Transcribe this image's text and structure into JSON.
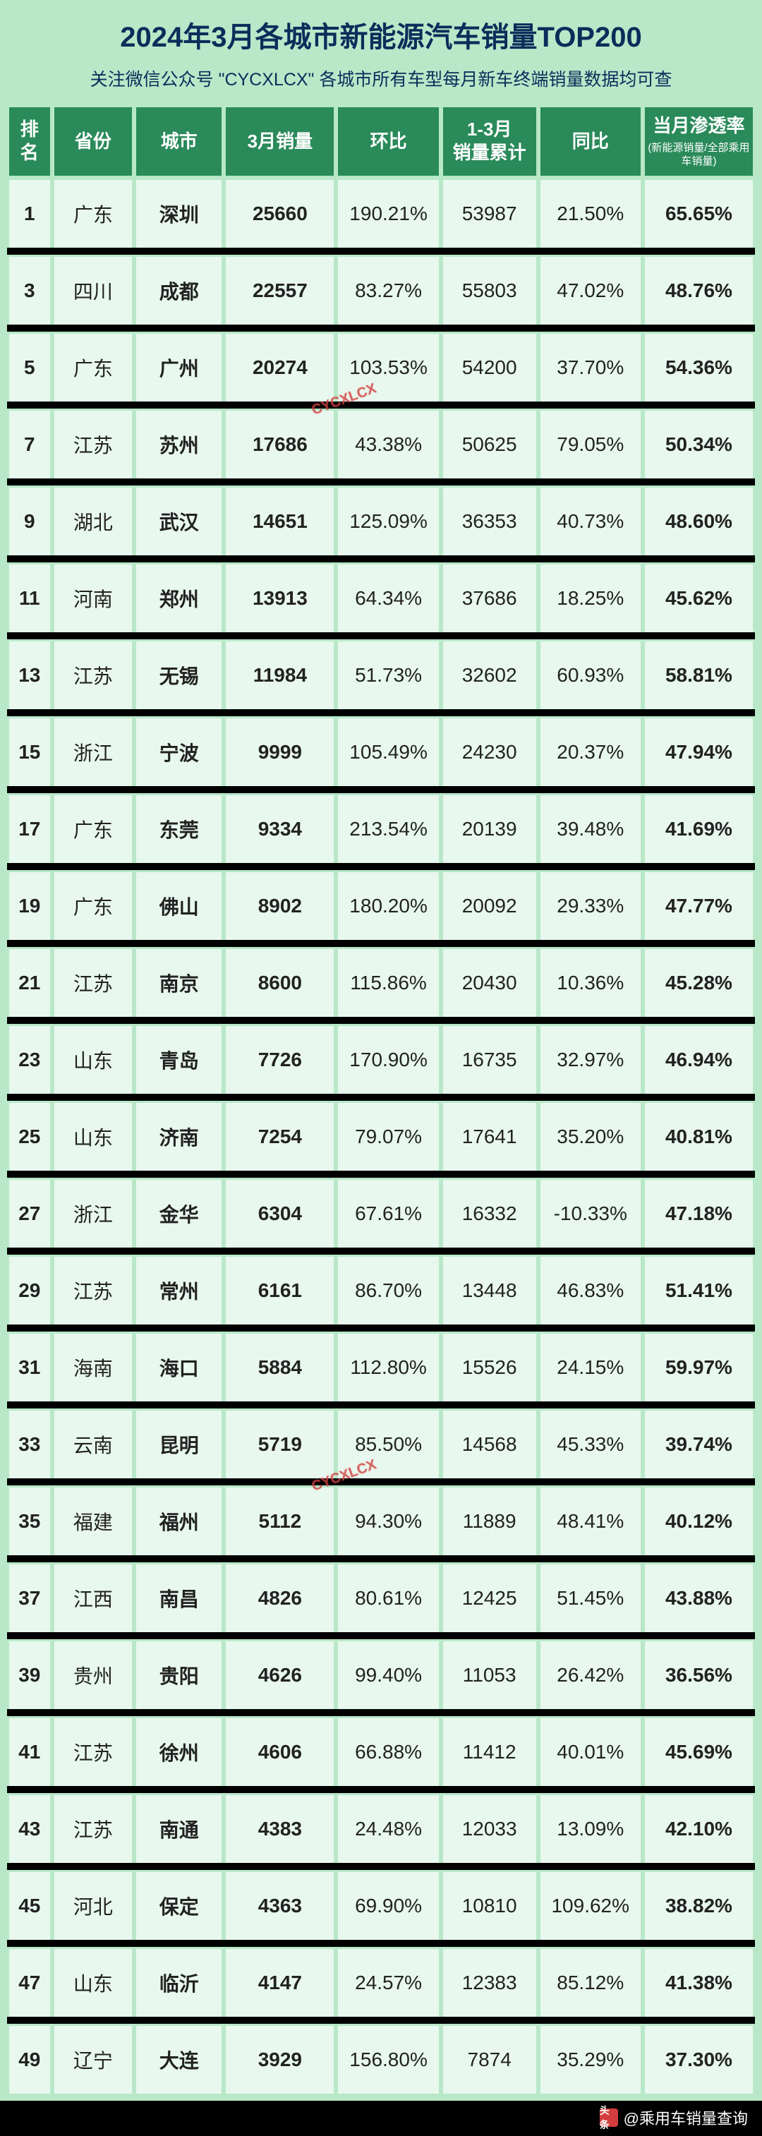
{
  "title": "2024年3月各城市新能源汽车销量TOP200",
  "subtitle_prefix": "关注微信公众号",
  "subtitle_account": "\"CYCXLCX\"",
  "subtitle_suffix": "各城市所有车型每月新车终端销量数据均可查",
  "watermark1": "CYCXLCX",
  "watermark2": "CYCXLCX",
  "footer_logo": "头条",
  "footer_text": "@乘用车销量查询",
  "colors": {
    "page_bg": "#b8e8c8",
    "header_bg": "#2a8a5a",
    "header_text": "#ffffff",
    "cell_bg": "#e8f8ee",
    "cell_text": "#222222",
    "title_color": "#0a2d5a",
    "gap_bg": "#000000",
    "watermark_color": "#d04040"
  },
  "headers": {
    "rank": "排名",
    "province": "省份",
    "city": "城市",
    "sales": "3月销量",
    "mom": "环比",
    "cum": "1-3月\n销量累计",
    "yoy": "同比",
    "pen_main": "当月渗透率",
    "pen_sub": "(新能源销量/全部乘用车销量)"
  },
  "rows": [
    {
      "rank": "1",
      "province": "广东",
      "city": "深圳",
      "sales": "25660",
      "mom": "190.21%",
      "cum": "53987",
      "yoy": "21.50%",
      "pen": "65.65%"
    },
    {
      "rank": "3",
      "province": "四川",
      "city": "成都",
      "sales": "22557",
      "mom": "83.27%",
      "cum": "55803",
      "yoy": "47.02%",
      "pen": "48.76%"
    },
    {
      "rank": "5",
      "province": "广东",
      "city": "广州",
      "sales": "20274",
      "mom": "103.53%",
      "cum": "54200",
      "yoy": "37.70%",
      "pen": "54.36%"
    },
    {
      "rank": "7",
      "province": "江苏",
      "city": "苏州",
      "sales": "17686",
      "mom": "43.38%",
      "cum": "50625",
      "yoy": "79.05%",
      "pen": "50.34%"
    },
    {
      "rank": "9",
      "province": "湖北",
      "city": "武汉",
      "sales": "14651",
      "mom": "125.09%",
      "cum": "36353",
      "yoy": "40.73%",
      "pen": "48.60%"
    },
    {
      "rank": "11",
      "province": "河南",
      "city": "郑州",
      "sales": "13913",
      "mom": "64.34%",
      "cum": "37686",
      "yoy": "18.25%",
      "pen": "45.62%"
    },
    {
      "rank": "13",
      "province": "江苏",
      "city": "无锡",
      "sales": "11984",
      "mom": "51.73%",
      "cum": "32602",
      "yoy": "60.93%",
      "pen": "58.81%"
    },
    {
      "rank": "15",
      "province": "浙江",
      "city": "宁波",
      "sales": "9999",
      "mom": "105.49%",
      "cum": "24230",
      "yoy": "20.37%",
      "pen": "47.94%"
    },
    {
      "rank": "17",
      "province": "广东",
      "city": "东莞",
      "sales": "9334",
      "mom": "213.54%",
      "cum": "20139",
      "yoy": "39.48%",
      "pen": "41.69%"
    },
    {
      "rank": "19",
      "province": "广东",
      "city": "佛山",
      "sales": "8902",
      "mom": "180.20%",
      "cum": "20092",
      "yoy": "29.33%",
      "pen": "47.77%"
    },
    {
      "rank": "21",
      "province": "江苏",
      "city": "南京",
      "sales": "8600",
      "mom": "115.86%",
      "cum": "20430",
      "yoy": "10.36%",
      "pen": "45.28%"
    },
    {
      "rank": "23",
      "province": "山东",
      "city": "青岛",
      "sales": "7726",
      "mom": "170.90%",
      "cum": "16735",
      "yoy": "32.97%",
      "pen": "46.94%"
    },
    {
      "rank": "25",
      "province": "山东",
      "city": "济南",
      "sales": "7254",
      "mom": "79.07%",
      "cum": "17641",
      "yoy": "35.20%",
      "pen": "40.81%"
    },
    {
      "rank": "27",
      "province": "浙江",
      "city": "金华",
      "sales": "6304",
      "mom": "67.61%",
      "cum": "16332",
      "yoy": "-10.33%",
      "pen": "47.18%"
    },
    {
      "rank": "29",
      "province": "江苏",
      "city": "常州",
      "sales": "6161",
      "mom": "86.70%",
      "cum": "13448",
      "yoy": "46.83%",
      "pen": "51.41%"
    },
    {
      "rank": "31",
      "province": "海南",
      "city": "海口",
      "sales": "5884",
      "mom": "112.80%",
      "cum": "15526",
      "yoy": "24.15%",
      "pen": "59.97%"
    },
    {
      "rank": "33",
      "province": "云南",
      "city": "昆明",
      "sales": "5719",
      "mom": "85.50%",
      "cum": "14568",
      "yoy": "45.33%",
      "pen": "39.74%"
    },
    {
      "rank": "35",
      "province": "福建",
      "city": "福州",
      "sales": "5112",
      "mom": "94.30%",
      "cum": "11889",
      "yoy": "48.41%",
      "pen": "40.12%"
    },
    {
      "rank": "37",
      "province": "江西",
      "city": "南昌",
      "sales": "4826",
      "mom": "80.61%",
      "cum": "12425",
      "yoy": "51.45%",
      "pen": "43.88%"
    },
    {
      "rank": "39",
      "province": "贵州",
      "city": "贵阳",
      "sales": "4626",
      "mom": "99.40%",
      "cum": "11053",
      "yoy": "26.42%",
      "pen": "36.56%"
    },
    {
      "rank": "41",
      "province": "江苏",
      "city": "徐州",
      "sales": "4606",
      "mom": "66.88%",
      "cum": "11412",
      "yoy": "40.01%",
      "pen": "45.69%"
    },
    {
      "rank": "43",
      "province": "江苏",
      "city": "南通",
      "sales": "4383",
      "mom": "24.48%",
      "cum": "12033",
      "yoy": "13.09%",
      "pen": "42.10%"
    },
    {
      "rank": "45",
      "province": "河北",
      "city": "保定",
      "sales": "4363",
      "mom": "69.90%",
      "cum": "10810",
      "yoy": "109.62%",
      "pen": "38.82%"
    },
    {
      "rank": "47",
      "province": "山东",
      "city": "临沂",
      "sales": "4147",
      "mom": "24.57%",
      "cum": "12383",
      "yoy": "85.12%",
      "pen": "41.38%"
    },
    {
      "rank": "49",
      "province": "辽宁",
      "city": "大连",
      "sales": "3929",
      "mom": "156.80%",
      "cum": "7874",
      "yoy": "35.29%",
      "pen": "37.30%"
    }
  ]
}
